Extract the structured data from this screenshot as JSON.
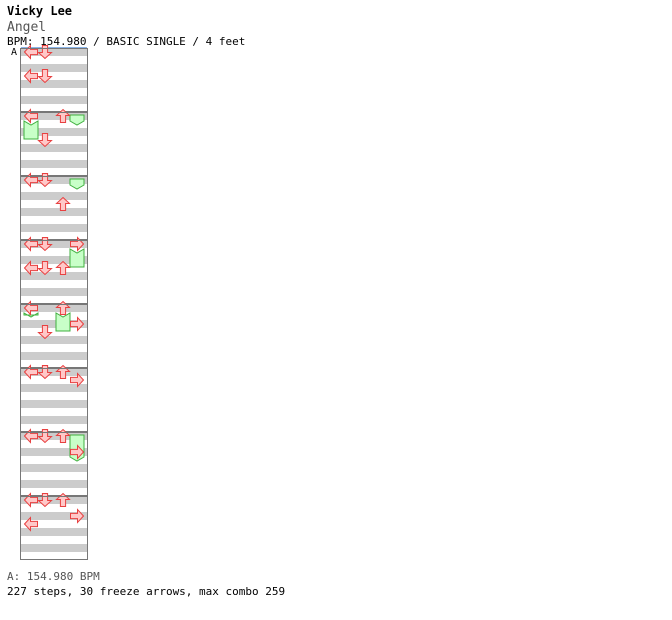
{
  "header": {
    "artist": "Vicky Lee",
    "title": "Angel",
    "info": "BPM: 154.980 / BASIC SINGLE / 4 feet",
    "section_label": "A"
  },
  "footer": {
    "bpm_line": "A: 154.980 BPM",
    "stats": "227 steps, 30 freeze arrows, max combo 259"
  },
  "colors": {
    "stripe": "#cccccc",
    "background": "#ffffff",
    "border": "#777777",
    "arrow_fill": "#ffc8c8",
    "arrow_stroke": "#e84040",
    "freeze_fill": "#c8ffc8",
    "freeze_stroke": "#40b040"
  },
  "chart": {
    "panel_columns": 8,
    "panel_rows": 8,
    "lanes": [
      "left",
      "down",
      "up",
      "right"
    ],
    "steps_per_panel": 8,
    "panels": [
      {
        "notes": [
          [
            0,
            0
          ],
          [
            0,
            3
          ],
          [
            1,
            0
          ],
          [
            1,
            3
          ],
          [
            4,
            3
          ],
          [
            5,
            0
          ],
          [
            5,
            3
          ]
        ],
        "freezes": []
      },
      {
        "notes": [
          [
            0,
            0
          ],
          [
            1,
            3
          ],
          [
            2,
            0
          ],
          [
            4,
            2
          ],
          [
            5,
            0
          ],
          [
            6,
            3
          ],
          [
            7,
            0
          ]
        ],
        "freezes": [
          [
            0,
            3,
            1,
            3
          ],
          [
            3,
            0,
            1,
            4
          ]
        ]
      },
      {
        "notes": [
          [
            0,
            0
          ],
          [
            1,
            0
          ],
          [
            2,
            3
          ],
          [
            4,
            0
          ],
          [
            5,
            2
          ],
          [
            5,
            3
          ],
          [
            7,
            3
          ]
        ],
        "freezes": [
          [
            3,
            0,
            1,
            5
          ]
        ]
      },
      {
        "notes": [
          [
            0,
            0
          ],
          [
            0,
            3
          ],
          [
            1,
            0
          ],
          [
            1,
            3
          ],
          [
            2,
            3
          ],
          [
            3,
            0
          ],
          [
            4,
            2
          ],
          [
            6,
            0
          ],
          [
            6,
            3
          ]
        ],
        "freezes": [
          [
            3,
            3,
            1,
            4
          ]
        ]
      },
      {
        "notes": [
          [
            0,
            0
          ],
          [
            1,
            3
          ],
          [
            2,
            0
          ],
          [
            3,
            2
          ],
          [
            4,
            1
          ],
          [
            4,
            2
          ],
          [
            5,
            1
          ],
          [
            5,
            2
          ],
          [
            6,
            0
          ],
          [
            6,
            3
          ],
          [
            7,
            1
          ]
        ],
        "freezes": [
          [
            0,
            1,
            1,
            2
          ],
          [
            2,
            3,
            1,
            2
          ],
          [
            4,
            3,
            0,
            2
          ],
          [
            5,
            3,
            1,
            3
          ],
          [
            6,
            0,
            1,
            4
          ],
          [
            7,
            2,
            0,
            2
          ]
        ]
      },
      {
        "notes": [
          [
            0,
            0
          ],
          [
            1,
            0
          ],
          [
            2,
            0
          ],
          [
            3,
            1
          ],
          [
            4,
            3
          ],
          [
            5,
            1
          ],
          [
            6,
            1
          ],
          [
            7,
            1
          ]
        ],
        "freezes": [
          [
            4,
            0,
            0,
            4
          ],
          [
            5,
            1,
            0,
            5
          ],
          [
            6,
            0,
            0,
            3
          ],
          [
            6,
            3,
            0,
            5
          ]
        ]
      },
      {
        "notes": [
          [
            0,
            0
          ],
          [
            1,
            0
          ],
          [
            2,
            0
          ],
          [
            3,
            2
          ],
          [
            4,
            0
          ],
          [
            4,
            1
          ],
          [
            5,
            2
          ],
          [
            6,
            0
          ],
          [
            6,
            3
          ],
          [
            7,
            2
          ]
        ],
        "freezes": [
          [
            3,
            0,
            3,
            8
          ],
          [
            4,
            2,
            3,
            6
          ],
          [
            5,
            1,
            2,
            6
          ],
          [
            6,
            2,
            1,
            6
          ]
        ]
      },
      {
        "notes": [
          [
            0,
            0
          ],
          [
            0,
            3
          ],
          [
            1,
            0
          ],
          [
            2,
            0
          ],
          [
            3,
            2
          ],
          [
            4,
            0
          ],
          [
            5,
            3
          ],
          [
            6,
            0
          ],
          [
            7,
            3
          ]
        ],
        "freezes": [
          [
            4,
            3,
            1,
            7
          ]
        ]
      }
    ]
  }
}
